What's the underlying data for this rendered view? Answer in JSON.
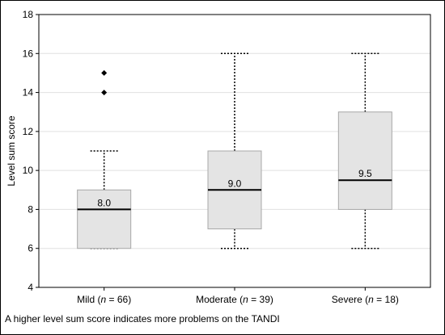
{
  "chart_data": {
    "type": "box",
    "title": "",
    "xlabel": "",
    "ylabel": "Level sum score",
    "ylim": [
      4,
      18
    ],
    "yticks": [
      "4",
      "6",
      "8",
      "10",
      "12",
      "14",
      "16",
      "18"
    ],
    "grid": true,
    "categories": [
      {
        "name": "Mild",
        "n": "66"
      },
      {
        "name": "Moderate",
        "n": "39"
      },
      {
        "name": "Severe",
        "n": "18"
      }
    ],
    "boxes": [
      {
        "min": 6,
        "q1": 6,
        "median": 8,
        "q3": 9,
        "max": 11,
        "outliers": [
          14,
          15
        ],
        "median_label": "8.0"
      },
      {
        "min": 6,
        "q1": 7,
        "median": 9,
        "q3": 11,
        "max": 16,
        "outliers": [],
        "median_label": "9.0"
      },
      {
        "min": 6,
        "q1": 8,
        "median": 9.5,
        "q3": 13,
        "max": 16,
        "outliers": [],
        "median_label": "9.5"
      }
    ],
    "colors": {
      "box_fill": "#e4e4e4",
      "box_stroke": "#a8a8a8",
      "grid": "#e0e0e0",
      "median": "#000000"
    }
  },
  "footnote": "A higher level sum score indicates more problems on the TANDI"
}
